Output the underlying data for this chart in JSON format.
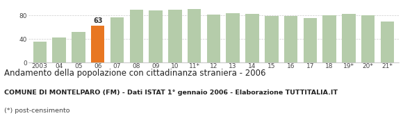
{
  "categories": [
    "2003",
    "04",
    "05",
    "06",
    "07",
    "08",
    "09",
    "10",
    "11*",
    "12",
    "13",
    "14",
    "15",
    "16",
    "17",
    "18",
    "19*",
    "20*",
    "21*"
  ],
  "values": [
    35,
    43,
    52,
    63,
    77,
    90,
    88,
    90,
    91,
    81,
    84,
    82,
    79,
    79,
    76,
    80,
    83,
    80,
    70
  ],
  "bar_colors": [
    "#b5ccaa",
    "#b5ccaa",
    "#b5ccaa",
    "#e87722",
    "#b5ccaa",
    "#b5ccaa",
    "#b5ccaa",
    "#b5ccaa",
    "#b5ccaa",
    "#b5ccaa",
    "#b5ccaa",
    "#b5ccaa",
    "#b5ccaa",
    "#b5ccaa",
    "#b5ccaa",
    "#b5ccaa",
    "#b5ccaa",
    "#b5ccaa",
    "#b5ccaa"
  ],
  "highlight_index": 3,
  "highlight_label": "63",
  "ylim": [
    0,
    100
  ],
  "yticks": [
    0,
    40,
    80
  ],
  "title": "Andamento della popolazione con cittadinanza straniera - 2006",
  "subtitle": "COMUNE DI MONTELPARO (FM) - Dati ISTAT 1° gennaio 2006 - Elaborazione TUTTITALIA.IT",
  "footnote": "(*) post-censimento",
  "background_color": "#ffffff",
  "grid_color": "#cccccc",
  "title_fontsize": 8.5,
  "subtitle_fontsize": 6.8,
  "footnote_fontsize": 6.8,
  "tick_fontsize": 6.5
}
